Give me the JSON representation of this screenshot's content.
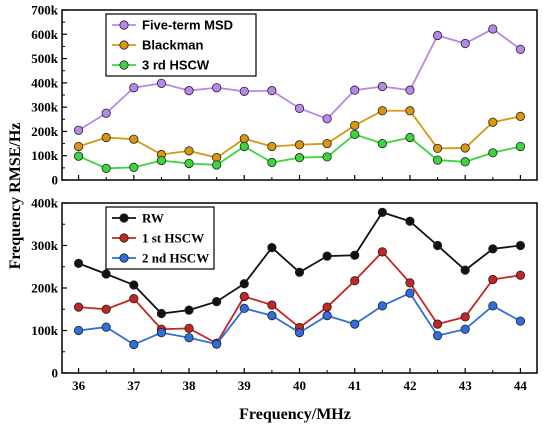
{
  "chart_data": [
    {
      "type": "line",
      "xlabel": "",
      "ylabel": "",
      "xlim": [
        35.7,
        44.3
      ],
      "ylim": [
        0,
        700000
      ],
      "yticks": [
        0,
        100000,
        200000,
        300000,
        400000,
        500000,
        600000,
        700000
      ],
      "ytick_labels": [
        "0",
        "100k",
        "200k",
        "300k",
        "400k",
        "500k",
        "600k",
        "700k"
      ],
      "x": [
        36,
        36.5,
        37,
        37.5,
        38,
        38.5,
        39,
        39.5,
        40,
        40.5,
        41,
        41.5,
        42,
        42.5,
        43,
        43.5,
        44
      ],
      "legend_position": "top-left",
      "series": [
        {
          "name": "Five-term MSD",
          "color": "#b887e8",
          "marker": "circle",
          "values": [
            205000,
            275000,
            380000,
            398000,
            368000,
            380000,
            365000,
            368000,
            295000,
            252000,
            370000,
            385000,
            370000,
            595000,
            562000,
            622000,
            538000
          ]
        },
        {
          "name": "Blackman",
          "color": "#d9960f",
          "marker": "circle",
          "values": [
            138000,
            175000,
            168000,
            105000,
            120000,
            92000,
            170000,
            138000,
            145000,
            150000,
            225000,
            285000,
            285000,
            130000,
            132000,
            238000,
            262000
          ]
        },
        {
          "name": "3 rd HSCW",
          "color": "#3cd63c",
          "marker": "circle",
          "values": [
            98000,
            48000,
            52000,
            80000,
            68000,
            62000,
            138000,
            72000,
            92000,
            95000,
            188000,
            150000,
            175000,
            82000,
            75000,
            112000,
            138000
          ]
        }
      ]
    },
    {
      "type": "line",
      "xlabel": "Frequency/MHz",
      "ylabel": "",
      "xlim": [
        35.7,
        44.3
      ],
      "ylim": [
        0,
        400000
      ],
      "xticks": [
        36,
        37,
        38,
        39,
        40,
        41,
        42,
        43,
        44
      ],
      "yticks": [
        0,
        100000,
        200000,
        300000,
        400000
      ],
      "ytick_labels": [
        "0",
        "100k",
        "200k",
        "300k",
        "400k"
      ],
      "x": [
        36,
        36.5,
        37,
        37.5,
        38,
        38.5,
        39,
        39.5,
        40,
        40.5,
        41,
        41.5,
        42,
        42.5,
        43,
        43.5,
        44
      ],
      "legend_position": "top-left",
      "series": [
        {
          "name": "RW",
          "color": "#111111",
          "marker": "circle",
          "values": [
            258000,
            233000,
            207000,
            140000,
            148000,
            168000,
            210000,
            295000,
            237000,
            275000,
            277000,
            378000,
            357000,
            300000,
            242000,
            292000,
            300000
          ]
        },
        {
          "name": "1 st HSCW",
          "color": "#c42525",
          "marker": "circle",
          "values": [
            155000,
            150000,
            175000,
            103000,
            105000,
            70000,
            180000,
            160000,
            107000,
            155000,
            217000,
            285000,
            212000,
            115000,
            132000,
            220000,
            230000
          ]
        },
        {
          "name": "2 nd HSCW",
          "color": "#2f6fdc",
          "marker": "circle",
          "values": [
            100000,
            108000,
            67000,
            95000,
            83000,
            68000,
            152000,
            135000,
            95000,
            135000,
            115000,
            158000,
            188000,
            88000,
            103000,
            158000,
            122000
          ]
        }
      ]
    }
  ],
  "shared_ylabel": "Frequency RMSE/Hz"
}
